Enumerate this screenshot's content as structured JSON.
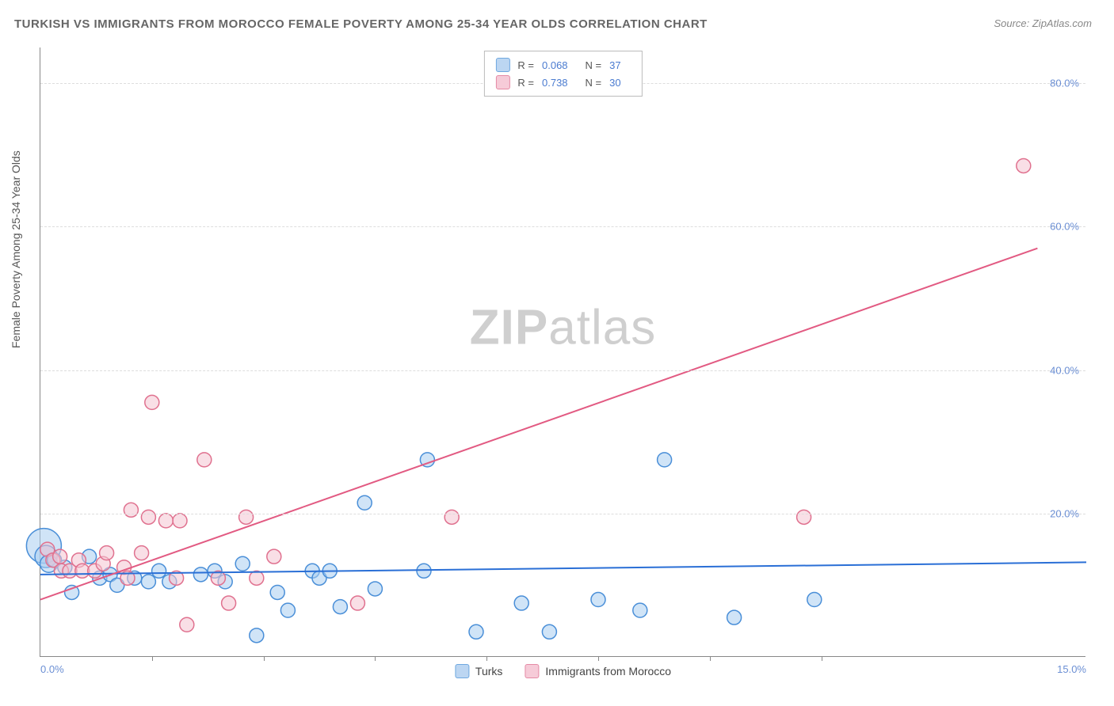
{
  "title": "TURKISH VS IMMIGRANTS FROM MOROCCO FEMALE POVERTY AMONG 25-34 YEAR OLDS CORRELATION CHART",
  "source_prefix": "Source: ",
  "source_name": "ZipAtlas.com",
  "y_axis_label": "Female Poverty Among 25-34 Year Olds",
  "watermark_bold": "ZIP",
  "watermark_light": "atlas",
  "chart": {
    "type": "scatter",
    "xlim": [
      0,
      15
    ],
    "ylim": [
      0,
      85
    ],
    "x_ticks": [
      0,
      1.6,
      3.2,
      4.8,
      6.4,
      8.0,
      9.6,
      11.2,
      15.0
    ],
    "x_tick_labels_shown": {
      "0": "0.0%",
      "15": "15.0%"
    },
    "y_gridlines": [
      20,
      40,
      60,
      80
    ],
    "y_tick_labels": {
      "20": "20.0%",
      "40": "40.0%",
      "60": "60.0%",
      "80": "80.0%"
    },
    "background_color": "#ffffff",
    "grid_color": "#dddddd",
    "axis_color": "#888888",
    "tick_label_color": "#6b8fd4",
    "series": [
      {
        "name": "Turks",
        "fill_color": "#a9cdf0",
        "stroke_color": "#4a8fd8",
        "fill_opacity": 0.55,
        "swatch_fill": "#bcd6f2",
        "swatch_border": "#6fa8e0",
        "stats": {
          "R": "0.068",
          "N": "37"
        },
        "marker_radius": 9,
        "trend_line": {
          "x1": 0,
          "y1": 11.5,
          "x2": 15,
          "y2": 13.2,
          "color": "#2a6fd6",
          "width": 2
        },
        "points": [
          {
            "x": 0.05,
            "y": 15.5,
            "r": 22
          },
          {
            "x": 0.08,
            "y": 14,
            "r": 14
          },
          {
            "x": 0.12,
            "y": 13,
            "r": 11
          },
          {
            "x": 0.2,
            "y": 13.5
          },
          {
            "x": 0.35,
            "y": 12.5
          },
          {
            "x": 0.45,
            "y": 9
          },
          {
            "x": 0.7,
            "y": 14
          },
          {
            "x": 0.85,
            "y": 11
          },
          {
            "x": 1.0,
            "y": 11.5
          },
          {
            "x": 1.1,
            "y": 10
          },
          {
            "x": 1.35,
            "y": 11
          },
          {
            "x": 1.55,
            "y": 10.5
          },
          {
            "x": 1.7,
            "y": 12
          },
          {
            "x": 1.85,
            "y": 10.5
          },
          {
            "x": 2.3,
            "y": 11.5
          },
          {
            "x": 2.5,
            "y": 12
          },
          {
            "x": 2.65,
            "y": 10.5
          },
          {
            "x": 2.9,
            "y": 13
          },
          {
            "x": 3.1,
            "y": 3
          },
          {
            "x": 3.4,
            "y": 9
          },
          {
            "x": 3.55,
            "y": 6.5
          },
          {
            "x": 3.9,
            "y": 12
          },
          {
            "x": 4.0,
            "y": 11
          },
          {
            "x": 4.15,
            "y": 12
          },
          {
            "x": 4.3,
            "y": 7
          },
          {
            "x": 4.65,
            "y": 21.5
          },
          {
            "x": 4.8,
            "y": 9.5
          },
          {
            "x": 5.5,
            "y": 12
          },
          {
            "x": 5.55,
            "y": 27.5
          },
          {
            "x": 6.25,
            "y": 3.5
          },
          {
            "x": 6.9,
            "y": 7.5
          },
          {
            "x": 7.3,
            "y": 3.5
          },
          {
            "x": 8.0,
            "y": 8.0
          },
          {
            "x": 8.6,
            "y": 6.5
          },
          {
            "x": 8.95,
            "y": 27.5
          },
          {
            "x": 9.95,
            "y": 5.5
          },
          {
            "x": 11.1,
            "y": 8
          }
        ]
      },
      {
        "name": "Immigrants from Morocco",
        "fill_color": "#f4c4d2",
        "stroke_color": "#e0718f",
        "fill_opacity": 0.55,
        "swatch_fill": "#f6cbd8",
        "swatch_border": "#e58aa5",
        "stats": {
          "R": "0.738",
          "N": "30"
        },
        "marker_radius": 9,
        "trend_line": {
          "x1": 0,
          "y1": 8,
          "x2": 14.3,
          "y2": 57,
          "color": "#e25a82",
          "width": 2
        },
        "points": [
          {
            "x": 0.1,
            "y": 15
          },
          {
            "x": 0.18,
            "y": 13.5
          },
          {
            "x": 0.28,
            "y": 14
          },
          {
            "x": 0.3,
            "y": 12
          },
          {
            "x": 0.42,
            "y": 12
          },
          {
            "x": 0.55,
            "y": 13.5
          },
          {
            "x": 0.6,
            "y": 12
          },
          {
            "x": 0.78,
            "y": 12
          },
          {
            "x": 0.9,
            "y": 13
          },
          {
            "x": 0.95,
            "y": 14.5
          },
          {
            "x": 1.2,
            "y": 12.5
          },
          {
            "x": 1.25,
            "y": 11
          },
          {
            "x": 1.3,
            "y": 20.5
          },
          {
            "x": 1.45,
            "y": 14.5
          },
          {
            "x": 1.55,
            "y": 19.5
          },
          {
            "x": 1.6,
            "y": 35.5
          },
          {
            "x": 1.8,
            "y": 19
          },
          {
            "x": 1.95,
            "y": 11
          },
          {
            "x": 2.0,
            "y": 19
          },
          {
            "x": 2.1,
            "y": 4.5
          },
          {
            "x": 2.35,
            "y": 27.5
          },
          {
            "x": 2.55,
            "y": 11
          },
          {
            "x": 2.7,
            "y": 7.5
          },
          {
            "x": 2.95,
            "y": 19.5
          },
          {
            "x": 3.1,
            "y": 11
          },
          {
            "x": 3.35,
            "y": 14
          },
          {
            "x": 4.55,
            "y": 7.5
          },
          {
            "x": 5.9,
            "y": 19.5
          },
          {
            "x": 10.95,
            "y": 19.5
          },
          {
            "x": 14.1,
            "y": 68.5
          }
        ]
      }
    ],
    "legend_bottom": [
      {
        "label": "Turks",
        "series_index": 0
      },
      {
        "label": "Immigrants from Morocco",
        "series_index": 1
      }
    ]
  }
}
